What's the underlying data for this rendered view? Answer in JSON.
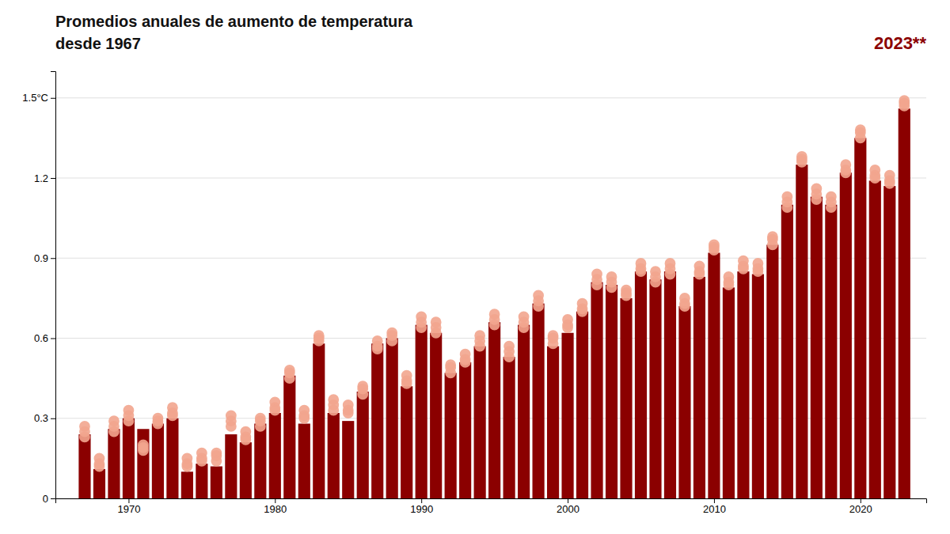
{
  "chart_data": {
    "type": "bar",
    "title": "Promedios anuales de aumento de temperatura",
    "subtitle": "desde 1967",
    "annotation": "2023**",
    "x": [
      1967,
      1968,
      1969,
      1970,
      1971,
      1972,
      1973,
      1974,
      1975,
      1976,
      1977,
      1978,
      1979,
      1980,
      1981,
      1982,
      1983,
      1984,
      1985,
      1986,
      1987,
      1988,
      1989,
      1990,
      1991,
      1992,
      1993,
      1994,
      1995,
      1996,
      1997,
      1998,
      1999,
      2000,
      2001,
      2002,
      2003,
      2004,
      2005,
      2006,
      2007,
      2008,
      2009,
      2010,
      2011,
      2012,
      2013,
      2014,
      2015,
      2016,
      2017,
      2018,
      2019,
      2020,
      2021,
      2022,
      2023
    ],
    "series": [
      {
        "type": "bar",
        "color": "#8b0000",
        "values": [
          0.24,
          0.11,
          0.26,
          0.3,
          0.26,
          0.28,
          0.3,
          0.1,
          0.13,
          0.12,
          0.24,
          0.21,
          0.28,
          0.32,
          0.46,
          0.28,
          0.58,
          0.32,
          0.29,
          0.4,
          0.58,
          0.6,
          0.42,
          0.65,
          0.62,
          0.47,
          0.51,
          0.57,
          0.66,
          0.53,
          0.65,
          0.73,
          0.57,
          0.62,
          0.7,
          0.81,
          0.8,
          0.75,
          0.85,
          0.82,
          0.85,
          0.72,
          0.83,
          0.92,
          0.79,
          0.85,
          0.84,
          0.95,
          1.1,
          1.25,
          1.13,
          1.1,
          1.22,
          1.35,
          1.19,
          1.17,
          1.46
        ]
      },
      {
        "type": "scatter",
        "marker": "circle",
        "color": "#f2a58e",
        "values": [
          0.27,
          0.15,
          0.29,
          0.33,
          0.19,
          0.29,
          0.34,
          0.15,
          0.17,
          0.17,
          0.31,
          0.25,
          0.3,
          0.36,
          0.48,
          0.33,
          0.61,
          0.37,
          0.35,
          0.42,
          0.59,
          0.62,
          0.46,
          0.68,
          0.66,
          0.5,
          0.54,
          0.61,
          0.69,
          0.57,
          0.68,
          0.76,
          0.61,
          0.67,
          0.73,
          0.84,
          0.83,
          0.78,
          0.88,
          0.85,
          0.88,
          0.75,
          0.87,
          0.95,
          0.83,
          0.89,
          0.88,
          0.98,
          1.13,
          1.28,
          1.16,
          1.13,
          1.25,
          1.38,
          1.23,
          1.21,
          1.49
        ]
      },
      {
        "type": "scatter",
        "marker": "circle",
        "color": "#f2a58e",
        "values": [
          0.25,
          0.13,
          0.27,
          0.31,
          0.2,
          0.3,
          0.32,
          0.13,
          0.15,
          0.16,
          0.29,
          0.23,
          0.29,
          0.34,
          0.47,
          0.31,
          0.6,
          0.35,
          0.33,
          0.41,
          0.57,
          0.61,
          0.44,
          0.66,
          0.64,
          0.49,
          0.52,
          0.59,
          0.67,
          0.55,
          0.66,
          0.74,
          0.6,
          0.65,
          0.71,
          0.82,
          0.81,
          0.77,
          0.86,
          0.83,
          0.86,
          0.73,
          0.85,
          0.94,
          0.81,
          0.87,
          0.86,
          0.97,
          1.11,
          1.27,
          1.14,
          1.11,
          1.23,
          1.37,
          1.21,
          1.19,
          1.48
        ]
      },
      {
        "type": "scatter",
        "marker": "circle",
        "color": "#f2a58e",
        "values": [
          0.23,
          0.12,
          0.25,
          0.29,
          0.18,
          0.28,
          0.31,
          0.12,
          0.14,
          0.14,
          0.27,
          0.22,
          0.27,
          0.33,
          0.45,
          0.3,
          0.59,
          0.33,
          0.32,
          0.39,
          0.56,
          0.59,
          0.43,
          0.64,
          0.62,
          0.47,
          0.51,
          0.57,
          0.65,
          0.53,
          0.64,
          0.72,
          0.58,
          0.64,
          0.7,
          0.8,
          0.79,
          0.76,
          0.85,
          0.81,
          0.84,
          0.72,
          0.84,
          0.93,
          0.8,
          0.86,
          0.85,
          0.95,
          1.09,
          1.26,
          1.12,
          1.09,
          1.22,
          1.35,
          1.2,
          1.18,
          1.47
        ]
      }
    ],
    "xlim": [
      1965.0,
      2024.5
    ],
    "xticks": [
      1970,
      1980,
      1990,
      2000,
      2010,
      2020
    ],
    "ylim": [
      0,
      1.6
    ],
    "yticks": [
      0,
      0.3,
      0.6,
      0.9,
      1.2,
      {
        "value": 1.5,
        "label": "1.5°C"
      }
    ],
    "grid": true
  }
}
